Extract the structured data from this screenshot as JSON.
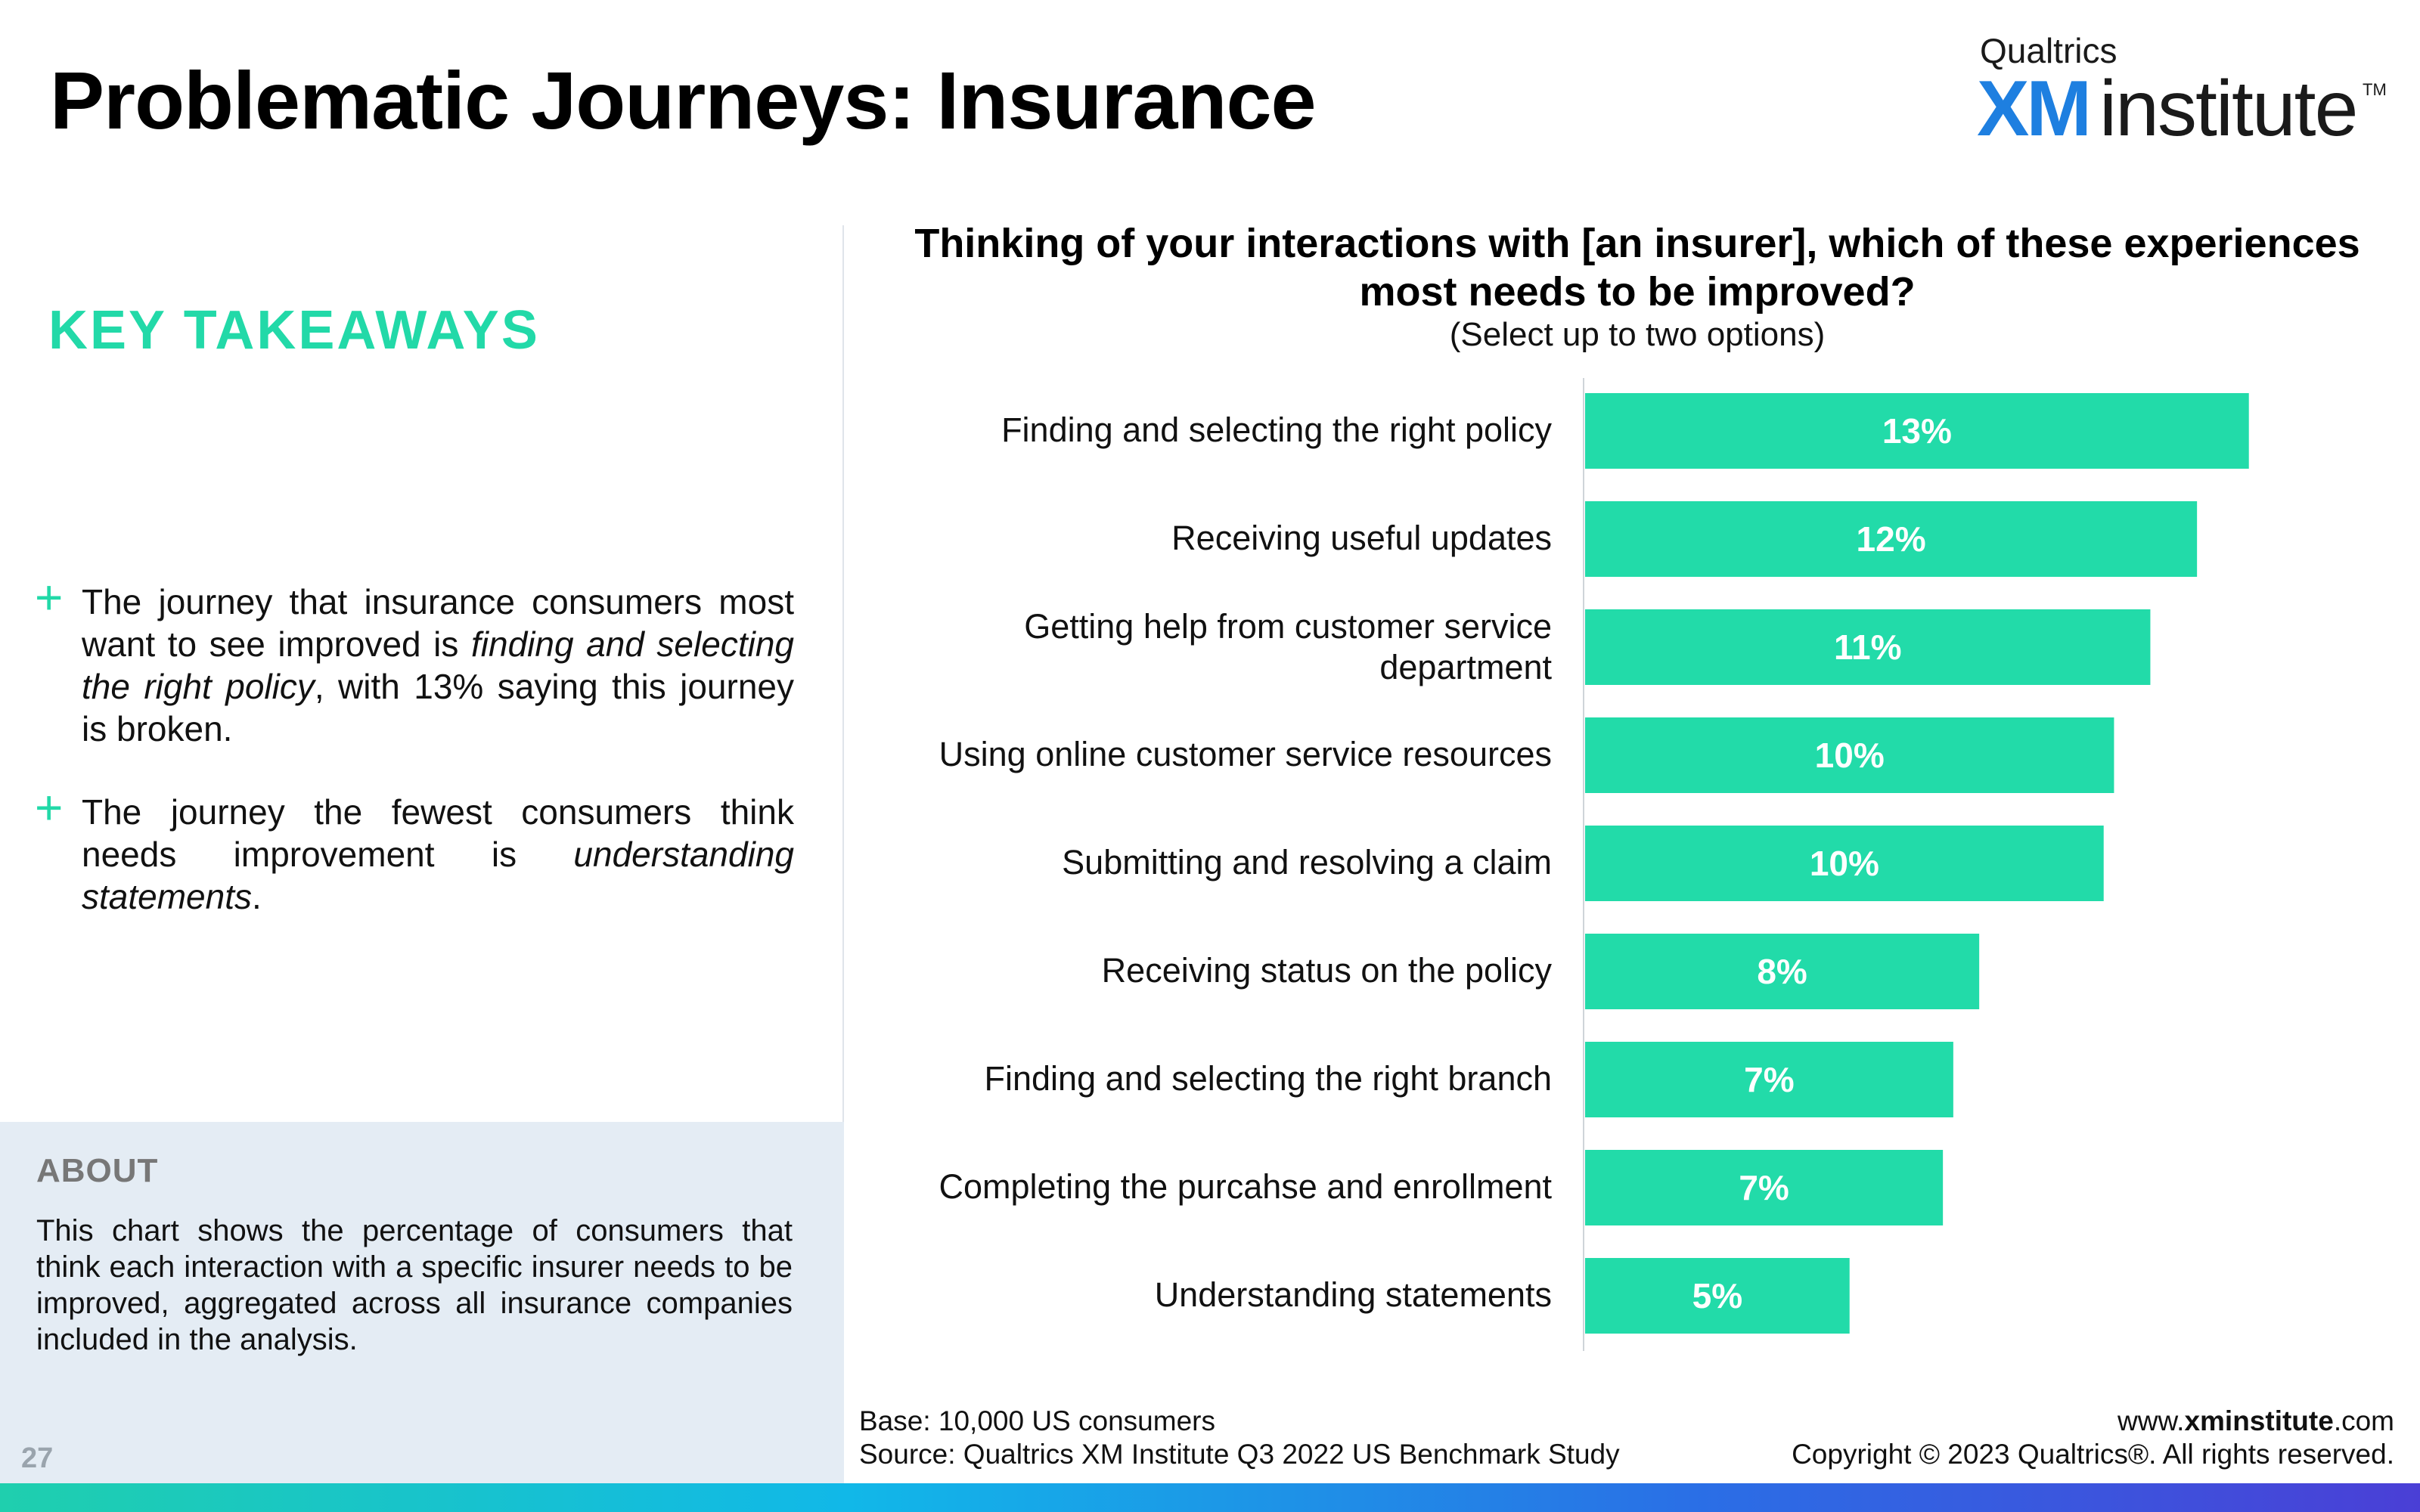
{
  "header": {
    "title": "Problematic Journeys: Insurance",
    "logo": {
      "brand": "Qualtrics",
      "xm": "XM",
      "institute": "institute",
      "tm": "TM"
    }
  },
  "takeaways": {
    "title": "KEY TAKEAWAYS",
    "bullets": [
      {
        "pre": "The journey that insurance consumers most want to see improved is ",
        "em": "finding and selecting the right policy",
        "post": ", with 13% saying this journey is broken."
      },
      {
        "pre": "The journey the fewest consumers think needs improvement is ",
        "em": "understanding statements",
        "post": "."
      }
    ]
  },
  "about": {
    "title": "ABOUT",
    "text": "This chart shows the percentage of consumers that think each interaction with a specific insurer needs to be improved, aggregated across all insurance companies included in the analysis."
  },
  "footer": {
    "page_number": "27",
    "base": "Base: 10,000 US consumers",
    "source": "Source: Qualtrics XM Institute Q3 2022 US Benchmark Study",
    "url_prefix": "www.",
    "url_bold": "xminstitute",
    "url_suffix": ".com",
    "copyright": "Copyright © 2023 Qualtrics®. All rights reserved."
  },
  "colors": {
    "bar": "#22dba9",
    "accent": "#22d9a8"
  },
  "chart_data": {
    "type": "bar",
    "orientation": "horizontal",
    "title": "Thinking of your interactions with [an insurer], which of these experiences most needs to be improved?",
    "subtitle": "(Select up to two options)",
    "categories": [
      "Finding and selecting the right policy",
      "Receiving useful updates",
      "Getting help from customer service department",
      "Using online customer service resources",
      "Submitting and resolving a claim",
      "Receiving status on the policy",
      "Finding and selecting the right branch",
      "Completing the purcahse and enrollment",
      "Understanding statements"
    ],
    "values": [
      12.8,
      11.8,
      10.9,
      10.2,
      10.0,
      7.6,
      7.1,
      6.9,
      5.1
    ],
    "data_labels": [
      "13%",
      "12%",
      "11%",
      "10%",
      "10%",
      "8%",
      "7%",
      "7%",
      "5%"
    ],
    "xlim": [
      0,
      14
    ],
    "grid": false,
    "legend": "none"
  }
}
